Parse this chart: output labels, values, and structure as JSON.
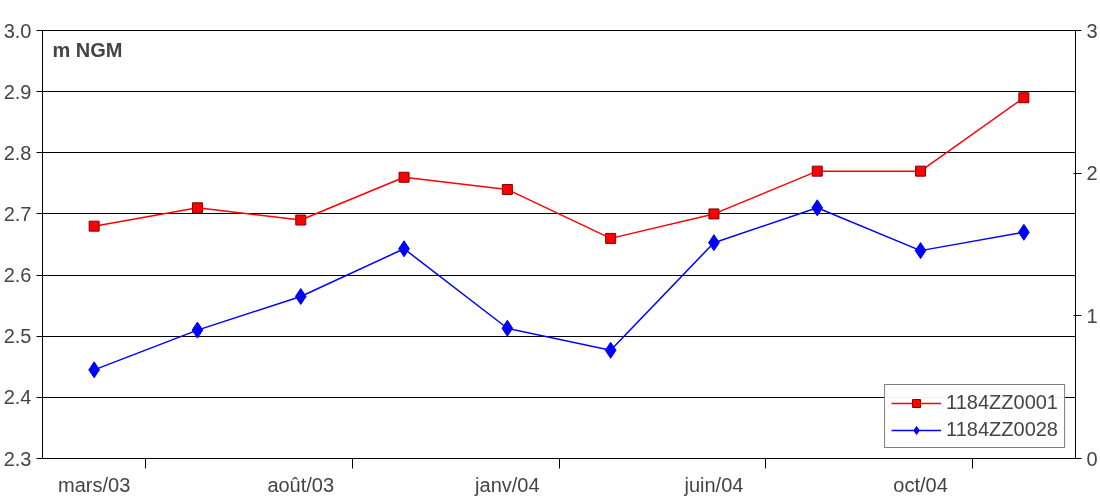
{
  "chart_data": {
    "type": "line",
    "ylabel": "m NGM",
    "categories": [
      "mars/03",
      null,
      "août/03",
      null,
      "janv/04",
      null,
      "juin/04",
      null,
      "oct/04",
      null
    ],
    "series": [
      {
        "name": "1184ZZ0001",
        "color": "#ff0000",
        "marker": "square",
        "values": [
          2.68,
          2.71,
          2.69,
          2.76,
          2.74,
          2.66,
          2.7,
          2.77,
          2.77,
          2.89
        ]
      },
      {
        "name": "1184ZZ0028",
        "color": "#0000ff",
        "marker": "diamond",
        "values": [
          2.445,
          2.51,
          2.565,
          2.643,
          2.513,
          2.477,
          2.653,
          2.71,
          2.64,
          2.67
        ]
      }
    ],
    "ylim": [
      2.3,
      3.0
    ],
    "yticks": [
      {
        "value": 2.3,
        "label": "2.3"
      },
      {
        "value": 2.4,
        "label": "2.4"
      },
      {
        "value": 2.5,
        "label": "2.5"
      },
      {
        "value": 2.6,
        "label": "2.6"
      },
      {
        "value": 2.7,
        "label": "2.7"
      },
      {
        "value": 2.8,
        "label": "2.8"
      },
      {
        "value": 2.9,
        "label": "2.9"
      },
      {
        "value": 3.0,
        "label": "3.0"
      }
    ],
    "y2lim": [
      0,
      3
    ],
    "y2ticks": [
      0,
      1,
      2,
      3
    ],
    "grid": "y",
    "legend": "bottom right",
    "line_style": "solid"
  }
}
